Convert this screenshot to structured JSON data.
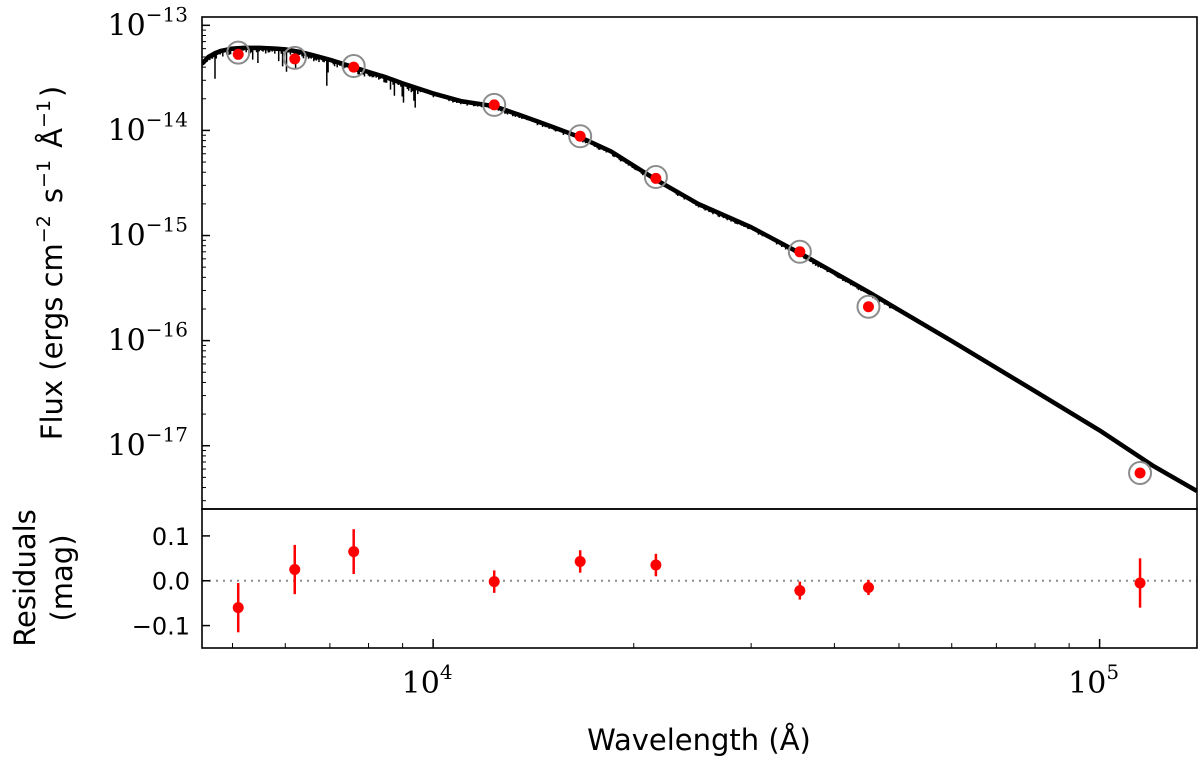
{
  "chart_data": [
    {
      "type": "line",
      "panel": "sed",
      "ylabel": "Flux (ergs cm−2 s−1 Å−1)",
      "xscale": "log",
      "yscale": "log",
      "xlim": [
        4500,
        140000
      ],
      "ylim": [
        2.5e-18,
        1.2e-13
      ],
      "y_ticks": [
        {
          "value": 1e-13,
          "base": "10",
          "exp": "−13"
        },
        {
          "value": 1e-14,
          "base": "10",
          "exp": "−14"
        },
        {
          "value": 1e-15,
          "base": "10",
          "exp": "−15"
        },
        {
          "value": 1e-16,
          "base": "10",
          "exp": "−16"
        },
        {
          "value": 1e-17,
          "base": "10",
          "exp": "−17"
        }
      ],
      "series": [
        {
          "kind": "model_spectrum",
          "color": "#000000",
          "x": [
            4500,
            4600,
            4700,
            4800,
            5000,
            5200,
            5500,
            5800,
            6000,
            6300,
            6600,
            7000,
            7500,
            8000,
            8500,
            9000,
            10000,
            11000,
            12350,
            13500,
            15000,
            16620,
            18500,
            21590,
            25000,
            30000,
            35500,
            45000,
            60000,
            80000,
            100000,
            120000,
            140000
          ],
          "y": [
            4.3e-14,
            5e-14,
            5.4e-14,
            5.7e-14,
            6e-14,
            6.1e-14,
            6.1e-14,
            6e-14,
            5.9e-14,
            5.6e-14,
            5.2e-14,
            4.7e-14,
            4.1e-14,
            3.6e-14,
            3.2e-14,
            2.8e-14,
            2.25e-14,
            1.9e-14,
            1.7e-14,
            1.4e-14,
            1.1e-14,
            8.6e-15,
            6.3e-15,
            3.4e-15,
            2e-15,
            1.2e-15,
            6.8e-16,
            2.9e-16,
            9.9e-17,
            3.3e-17,
            1.4e-17,
            6.5e-18,
            3.7e-18
          ]
        },
        {
          "kind": "model_photometry",
          "marker": "open-circle",
          "color": "#8c8c8c",
          "x": [
            5100,
            6200,
            7600,
            12350,
            16620,
            21590,
            35500,
            45000,
            115000
          ],
          "y": [
            5.5e-14,
            4.9e-14,
            4.1e-14,
            1.75e-14,
            8.8e-15,
            3.6e-15,
            7e-16,
            2.1e-16,
            5.5e-18
          ]
        },
        {
          "kind": "observed_photometry",
          "marker": "filled-circle",
          "color": "#ff0000",
          "x": [
            5100,
            6200,
            7600,
            12350,
            16620,
            21590,
            35500,
            45000,
            115000
          ],
          "y": [
            5.3e-14,
            4.8e-14,
            4e-14,
            1.75e-14,
            8.8e-15,
            3.5e-15,
            7e-16,
            2.1e-16,
            5.5e-18
          ]
        }
      ]
    },
    {
      "type": "scatter",
      "panel": "residuals",
      "xlabel": "Wavelength (Å)",
      "ylabel_lines": [
        "Residuals",
        "(mag)"
      ],
      "xscale": "log",
      "xlim": [
        4500,
        140000
      ],
      "ylim": [
        -0.15,
        0.16
      ],
      "y_ticks": [
        {
          "value": 0.1,
          "label": "0.1"
        },
        {
          "value": 0.0,
          "label": "0.0"
        },
        {
          "value": -0.1,
          "label": "−0.1"
        }
      ],
      "x_ticks": [
        {
          "value": 10000,
          "base": "10",
          "exp": "4"
        },
        {
          "value": 100000,
          "base": "10",
          "exp": "5"
        }
      ],
      "zero_line": {
        "value": 0.0,
        "style": "dotted",
        "color": "#8c8c8c"
      },
      "series": [
        {
          "marker": "filled-circle",
          "color": "#ff0000",
          "x": [
            5100,
            6200,
            7600,
            12350,
            16620,
            21590,
            35500,
            45000,
            115000
          ],
          "y": [
            -0.06,
            0.025,
            0.065,
            -0.002,
            0.043,
            0.035,
            -0.022,
            -0.015,
            -0.005
          ],
          "err": [
            0.055,
            0.055,
            0.05,
            0.025,
            0.025,
            0.025,
            0.02,
            0.017,
            0.055
          ]
        }
      ]
    }
  ]
}
